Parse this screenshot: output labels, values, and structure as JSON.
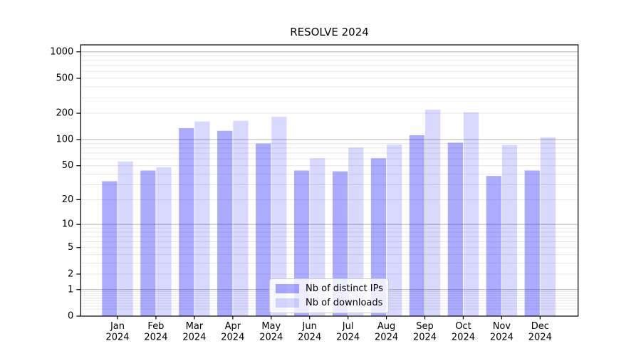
{
  "chart": {
    "title": "RESOLVE 2024"
  },
  "legend": {
    "items": [
      {
        "label": "Nb of distinct IPs",
        "color": "rgba(0,0,255,0.33)"
      },
      {
        "label": "Nb of downloads",
        "color": "rgba(0,0,255,0.15)"
      }
    ]
  },
  "chart_data": {
    "type": "bar",
    "title": "RESOLVE 2024",
    "scale": "log1p",
    "categories": [
      "Jan",
      "Feb",
      "Mar",
      "Apr",
      "May",
      "Jun",
      "Jul",
      "Aug",
      "Sep",
      "Oct",
      "Nov",
      "Dec"
    ],
    "category_year": "2024",
    "series": [
      {
        "name": "Nb of distinct IPs",
        "color": "rgba(0,0,255,0.33)",
        "values": [
          33,
          44,
          135,
          126,
          90,
          44,
          43,
          61,
          112,
          92,
          38,
          44
        ]
      },
      {
        "name": "Nb of downloads",
        "color": "rgba(0,0,255,0.15)",
        "values": [
          56,
          48,
          161,
          164,
          182,
          61,
          81,
          88,
          220,
          205,
          87,
          106
        ]
      }
    ],
    "ylabel": "",
    "xlabel": "",
    "ylim": [
      0,
      1200
    ],
    "ytick_values": [
      0,
      1,
      2,
      5,
      10,
      20,
      50,
      100,
      200,
      500,
      1000
    ],
    "ytick_labels": [
      "0",
      "1",
      "2",
      "5",
      "10",
      "20",
      "50",
      "100",
      "200",
      "500",
      "1000"
    ],
    "grid": "both",
    "legend_position": "lower center",
    "colors": {
      "major_grid": "#b3b3b3",
      "minor_grid": "#e6e6e6",
      "axis": "#000000",
      "text": "#000000"
    }
  }
}
